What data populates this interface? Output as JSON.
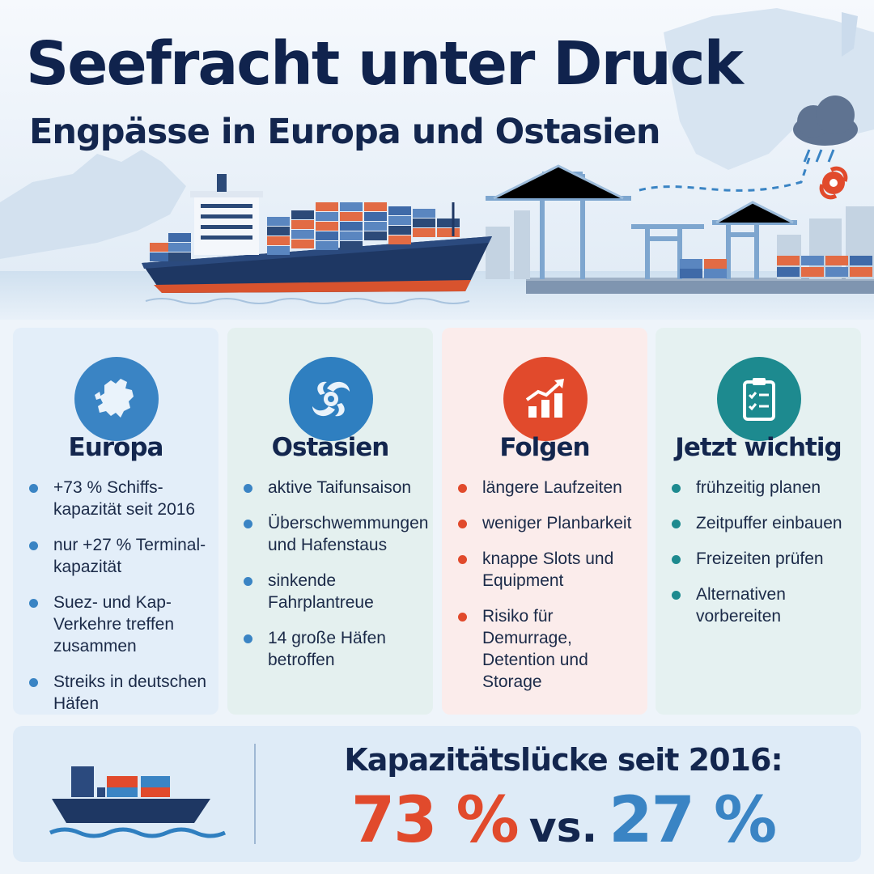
{
  "header": {
    "title": "Seefracht unter Druck",
    "subtitle": "Engpässe in Europa und Ostasien"
  },
  "colors": {
    "navy": "#13264e",
    "accent_red": "#e14a2c",
    "accent_blue": "#3a84c4",
    "teal": "#1d8a8f"
  },
  "cards": [
    {
      "title": "Europa",
      "icon": "europe-map-icon",
      "items": [
        "+73 % Schiffs-kapazität seit 2016",
        "nur +27 % Terminal-kapazität",
        "Suez- und Kap-Verkehre treffen zusammen",
        "Streiks in deutschen Häfen"
      ]
    },
    {
      "title": "Ostasien",
      "icon": "typhoon-icon",
      "items": [
        "aktive Taifunsaison",
        "Überschwemmungen und Hafenstaus",
        "sinkende Fahrplantreue",
        "14 große Häfen betroffen"
      ]
    },
    {
      "title": "Folgen",
      "icon": "rising-chart-icon",
      "items": [
        "längere Laufzeiten",
        "weniger Planbarkeit",
        "knappe Slots und Equipment",
        "Risiko für Demurrage, Detention und Storage"
      ]
    },
    {
      "title": "Jetzt wichtig",
      "icon": "clipboard-checklist-icon",
      "items": [
        "frühzeitig planen",
        "Zeitpuffer einbauen",
        "Freizeiten prüfen",
        "Alternativen vorbereiten"
      ]
    }
  ],
  "summary": {
    "label": "Kapazitätslücke seit 2016:",
    "value_1": "73 %",
    "vs": "vs.",
    "value_2": "27 %",
    "icon": "container-ship-icon"
  }
}
